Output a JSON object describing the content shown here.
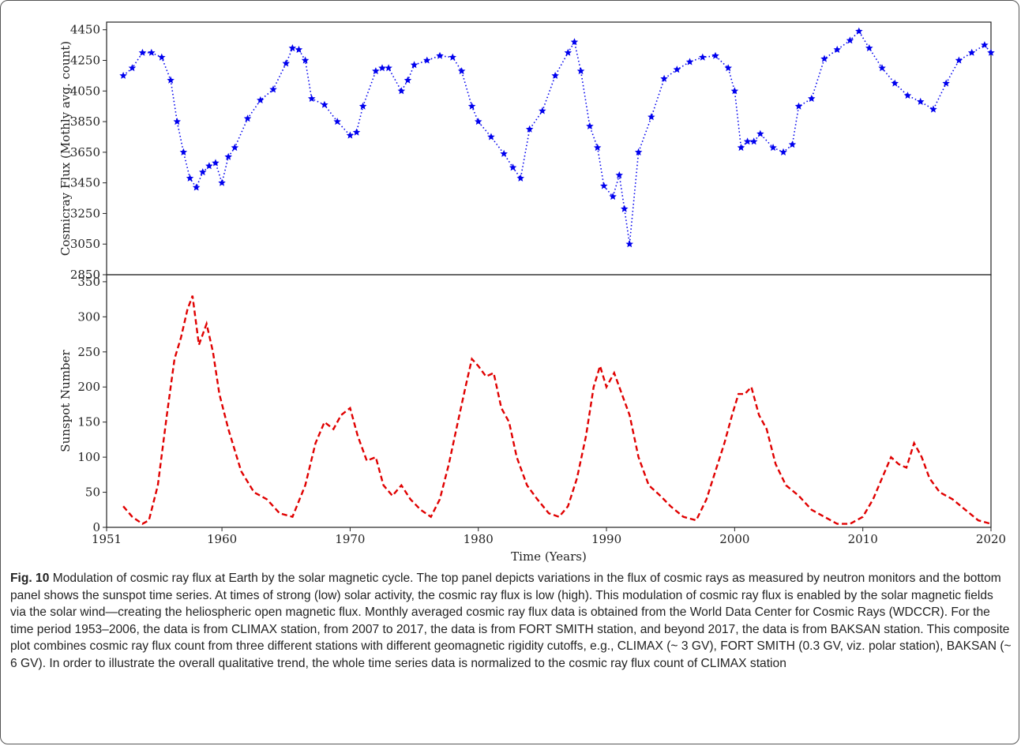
{
  "chart_data": [
    {
      "type": "line",
      "panel": "top",
      "ylabel": "Cosmicray Flux (Mothly avg. count)",
      "xlabel": "",
      "xlim": [
        1951,
        2020
      ],
      "ylim": [
        2850,
        4500
      ],
      "yticks": [
        2850,
        3050,
        3250,
        3450,
        3650,
        3850,
        4050,
        4250,
        4450
      ],
      "grid": false,
      "colors": {
        "series": "#0000ee"
      },
      "marker": "star",
      "line_style": "dotted",
      "series": [
        {
          "x": [
            1952.3,
            1953.0,
            1953.8,
            1954.5,
            1955.3,
            1956.0,
            1956.5,
            1957.0,
            1957.5,
            1958.0,
            1958.5,
            1959.0,
            1959.5,
            1960.0,
            1960.5,
            1961.0,
            1962.0,
            1963.0,
            1964.0,
            1965.0,
            1965.5,
            1966.0,
            1966.5,
            1967.0,
            1968.0,
            1969.0,
            1970.0,
            1970.5,
            1971.0,
            1972.0,
            1972.5,
            1973.0,
            1974.0,
            1974.5,
            1975.0,
            1976.0,
            1977.0,
            1978.0,
            1978.7,
            1979.5,
            1980.0,
            1981.0,
            1982.0,
            1982.7,
            1983.3,
            1984.0,
            1985.0,
            1986.0,
            1987.0,
            1987.5,
            1988.0,
            1988.7,
            1989.3,
            1989.8,
            1990.5,
            1991.0,
            1991.4,
            1991.8,
            1992.5,
            1993.5,
            1994.5,
            1995.5,
            1996.5,
            1997.5,
            1998.5,
            1999.5,
            2000.0,
            2000.5,
            2001.0,
            2001.5,
            2002.0,
            2003.0,
            2003.8,
            2004.5,
            2005.0,
            2006.0,
            2007.0,
            2008.0,
            2009.0,
            2009.7,
            2010.5,
            2011.5,
            2012.5,
            2013.5,
            2014.5,
            2015.5,
            2016.5,
            2017.5,
            2018.5,
            2019.5,
            2020.0
          ],
          "y": [
            4150,
            4200,
            4300,
            4300,
            4270,
            4120,
            3850,
            3650,
            3480,
            3420,
            3520,
            3560,
            3580,
            3450,
            3620,
            3680,
            3870,
            3990,
            4060,
            4230,
            4330,
            4320,
            4250,
            4000,
            3960,
            3850,
            3760,
            3780,
            3950,
            4180,
            4200,
            4200,
            4050,
            4120,
            4220,
            4250,
            4280,
            4270,
            4180,
            3950,
            3850,
            3750,
            3640,
            3550,
            3480,
            3800,
            3920,
            4150,
            4300,
            4370,
            4180,
            3820,
            3680,
            3430,
            3360,
            3500,
            3280,
            3050,
            3650,
            3880,
            4130,
            4190,
            4240,
            4270,
            4280,
            4200,
            4050,
            3680,
            3720,
            3720,
            3770,
            3680,
            3650,
            3700,
            3950,
            4000,
            4260,
            4320,
            4380,
            4440,
            4330,
            4200,
            4100,
            4020,
            3980,
            3930,
            4100,
            4250,
            4300,
            4350,
            4300
          ]
        }
      ]
    },
    {
      "type": "line",
      "panel": "bottom",
      "ylabel": "Sunspot Number",
      "xlabel": "Time (Years)",
      "xlim": [
        1951,
        2020
      ],
      "ylim": [
        0,
        360
      ],
      "xticks": [
        1951,
        1960,
        1970,
        1980,
        1990,
        2000,
        2010,
        2020
      ],
      "yticks": [
        0,
        50,
        100,
        150,
        200,
        250,
        300,
        350
      ],
      "grid": false,
      "colors": {
        "series": "#e00000"
      },
      "line_style": "dashed",
      "series": [
        {
          "x": [
            1952.3,
            1953.0,
            1953.8,
            1954.3,
            1955.0,
            1955.7,
            1956.3,
            1956.8,
            1957.3,
            1957.7,
            1958.2,
            1958.8,
            1959.3,
            1959.8,
            1960.5,
            1961.5,
            1962.5,
            1963.5,
            1964.5,
            1965.5,
            1966.5,
            1967.3,
            1968.0,
            1968.7,
            1969.3,
            1970.0,
            1970.6,
            1971.3,
            1972.0,
            1972.6,
            1973.3,
            1974.0,
            1974.7,
            1975.5,
            1976.3,
            1977.0,
            1977.7,
            1978.4,
            1979.0,
            1979.5,
            1980.0,
            1980.6,
            1981.2,
            1981.8,
            1982.4,
            1983.0,
            1983.8,
            1984.6,
            1985.5,
            1986.3,
            1987.0,
            1987.7,
            1988.4,
            1989.0,
            1989.5,
            1990.0,
            1990.6,
            1991.2,
            1991.8,
            1992.5,
            1993.3,
            1994.2,
            1995.0,
            1996.0,
            1997.0,
            1997.8,
            1998.5,
            1999.2,
            1999.8,
            2000.3,
            2000.8,
            2001.3,
            2001.9,
            2002.5,
            2003.2,
            2004.0,
            2005.0,
            2006.0,
            2007.0,
            2008.0,
            2009.0,
            2010.0,
            2010.8,
            2011.5,
            2012.2,
            2012.8,
            2013.4,
            2014.0,
            2014.6,
            2015.2,
            2016.0,
            2017.0,
            2018.0,
            2019.0,
            2020.0
          ],
          "y": [
            30,
            15,
            5,
            10,
            60,
            160,
            240,
            270,
            310,
            330,
            260,
            290,
            250,
            190,
            140,
            80,
            50,
            40,
            20,
            15,
            60,
            120,
            150,
            140,
            160,
            170,
            130,
            95,
            100,
            60,
            45,
            60,
            40,
            25,
            15,
            40,
            90,
            150,
            200,
            240,
            230,
            215,
            220,
            170,
            150,
            100,
            60,
            40,
            20,
            15,
            30,
            70,
            130,
            200,
            230,
            200,
            220,
            190,
            160,
            100,
            60,
            45,
            30,
            15,
            10,
            40,
            80,
            120,
            160,
            190,
            190,
            200,
            160,
            140,
            90,
            60,
            45,
            25,
            15,
            5,
            5,
            15,
            40,
            70,
            100,
            90,
            85,
            120,
            100,
            70,
            50,
            40,
            25,
            10,
            5
          ]
        }
      ]
    }
  ],
  "caption": {
    "label": "Fig. 10",
    "text": "Modulation of cosmic ray flux at Earth by the solar magnetic cycle. The top panel depicts variations in the flux of cosmic rays as measured by neutron monitors and the bottom panel shows the sunspot time series. At times of strong (low) solar activity, the cosmic ray flux is low (high). This modulation of cosmic ray flux is enabled by the solar magnetic fields via the solar wind—creating the heliospheric open magnetic flux. Monthly averaged cosmic ray flux data is obtained from the World Data Center for Cosmic Rays (WDCCR). For the time period 1953–2006, the data is from CLIMAX station, from 2007 to 2017, the data is from FORT SMITH station, and beyond 2017, the data is from BAKSAN station. This composite plot combines cosmic ray flux count from three different stations with different geomagnetic rigidity cutoffs, e.g., CLIMAX (~ 3 GV), FORT SMITH (0.3 GV, viz. polar station), BAKSAN (~ 6 GV). In order to illustrate the overall qualitative trend, the whole time series data is normalized to the cosmic ray flux count of CLIMAX station"
  }
}
